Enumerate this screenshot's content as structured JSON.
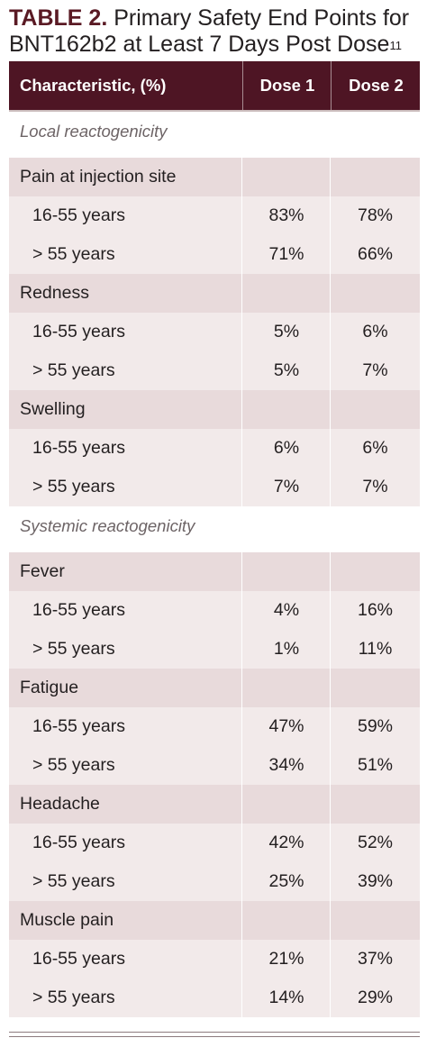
{
  "title": {
    "label": "TABLE 2.",
    "text": " Primary Safety End Points for BNT162b2 at Least 7 Days Post Dose",
    "footnote": "11"
  },
  "table": {
    "headers": [
      "Characteristic, (%)",
      "Dose 1",
      "Dose 2"
    ],
    "sections": [
      {
        "label": "Local reactogenicity",
        "categories": [
          {
            "name": "Pain at injection site",
            "rows": [
              {
                "label": "16-55 years",
                "dose1": "83%",
                "dose2": "78%"
              },
              {
                "label": "> 55 years",
                "dose1": "71%",
                "dose2": "66%"
              }
            ]
          },
          {
            "name": "Redness",
            "rows": [
              {
                "label": "16-55 years",
                "dose1": "5%",
                "dose2": "6%"
              },
              {
                "label": "> 55 years",
                "dose1": "5%",
                "dose2": "7%"
              }
            ]
          },
          {
            "name": "Swelling",
            "rows": [
              {
                "label": "16-55 years",
                "dose1": "6%",
                "dose2": "6%"
              },
              {
                "label": "> 55 years",
                "dose1": "7%",
                "dose2": "7%"
              }
            ]
          }
        ]
      },
      {
        "label": "Systemic reactogenicity",
        "categories": [
          {
            "name": "Fever",
            "rows": [
              {
                "label": "16-55 years",
                "dose1": "4%",
                "dose2": "16%"
              },
              {
                "label": "> 55 years",
                "dose1": "1%",
                "dose2": "11%"
              }
            ]
          },
          {
            "name": "Fatigue",
            "rows": [
              {
                "label": "16-55 years",
                "dose1": "47%",
                "dose2": "59%"
              },
              {
                "label": "> 55 years",
                "dose1": "34%",
                "dose2": "51%"
              }
            ]
          },
          {
            "name": "Headache",
            "rows": [
              {
                "label": "16-55 years",
                "dose1": "42%",
                "dose2": "52%"
              },
              {
                "label": "> 55 years",
                "dose1": "25%",
                "dose2": "39%"
              }
            ]
          },
          {
            "name": "Muscle pain",
            "rows": [
              {
                "label": "16-55 years",
                "dose1": "21%",
                "dose2": "37%"
              },
              {
                "label": "> 55 years",
                "dose1": "14%",
                "dose2": "29%"
              }
            ]
          }
        ]
      }
    ]
  }
}
